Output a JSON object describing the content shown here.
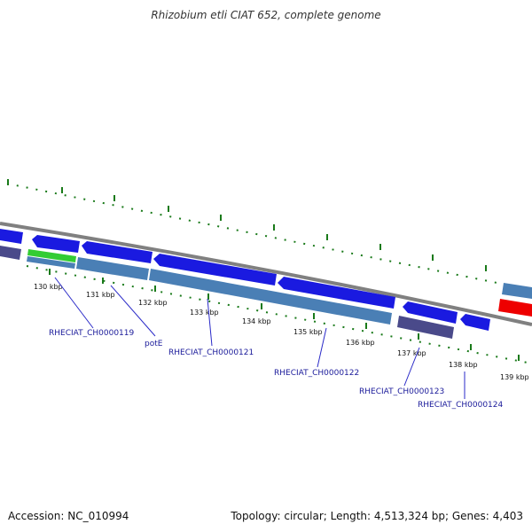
{
  "title": "Rhizobium etli CIAT 652, complete genome",
  "footer": {
    "accession": "Accession: NC_010994",
    "topology": "Topology: circular; Length: 4,513,324 bp; Genes: 4,403"
  },
  "colors": {
    "backbone": "#808080",
    "tick": "#1a7a1a",
    "gene_blue": "#1a1ae0",
    "gene_steel": "#4a7fb5",
    "gene_slate": "#4a4a8a",
    "gene_green": "#33cc33",
    "gene_red": "#ee0000",
    "label_line": "#2a2ac8"
  },
  "ticks": [
    "130 kbp",
    "131 kbp",
    "132 kbp",
    "133 kbp",
    "134 kbp",
    "135 kbp",
    "136 kbp",
    "137 kbp",
    "138 kbp",
    "139 kbp"
  ],
  "genes": [
    {
      "label": "RHECIAT_CH0000119"
    },
    {
      "label": "potE"
    },
    {
      "label": "RHECIAT_CH0000121"
    },
    {
      "label": "RHECIAT_CH0000122"
    },
    {
      "label": "RHECIAT_CH0000123"
    },
    {
      "label": "RHECIAT_CH0000124"
    }
  ]
}
